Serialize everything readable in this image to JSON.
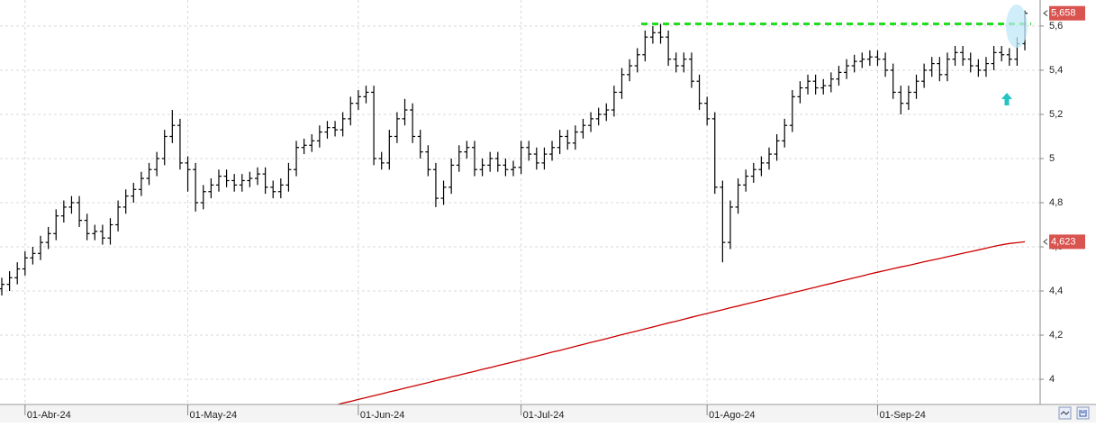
{
  "chart_data": {
    "type": "ohlc",
    "categories": [
      null,
      null,
      null,
      "01-Abr-24",
      null,
      null,
      null,
      null,
      null,
      null,
      null,
      null,
      null,
      null,
      null,
      null,
      null,
      null,
      null,
      null,
      null,
      null,
      null,
      null,
      "01-May-24",
      null,
      null,
      null,
      null,
      null,
      null,
      null,
      null,
      null,
      null,
      null,
      null,
      null,
      null,
      null,
      null,
      null,
      null,
      null,
      null,
      null,
      "01-Jun-24",
      null,
      null,
      null,
      null,
      null,
      null,
      null,
      null,
      null,
      null,
      null,
      null,
      null,
      null,
      null,
      null,
      null,
      null,
      null,
      null,
      "01-Jul-24",
      null,
      null,
      null,
      null,
      null,
      null,
      null,
      null,
      null,
      null,
      null,
      null,
      null,
      null,
      null,
      null,
      null,
      null,
      null,
      null,
      null,
      null,
      null,
      "01-Ago-24",
      null,
      null,
      null,
      null,
      null,
      null,
      null,
      null,
      null,
      null,
      null,
      null,
      null,
      null,
      null,
      null,
      null,
      null,
      null,
      null,
      null,
      "01-Sep-24",
      null,
      null,
      null,
      null,
      null,
      null,
      null,
      null,
      null,
      null,
      null,
      null,
      null,
      null,
      null,
      null,
      null,
      null,
      null
    ],
    "ylim": [
      3.886,
      5.718
    ],
    "yticks": [
      4,
      {
        "value": 4.2,
        "label": "4,2"
      },
      {
        "value": 4.4,
        "label": "4,4"
      },
      {
        "value": 4.6,
        "label": "4,6"
      },
      {
        "value": 4.8,
        "label": "4,8"
      },
      5,
      {
        "value": 5.2,
        "label": "5,2"
      },
      {
        "value": 5.4,
        "label": "5,4"
      },
      {
        "value": 5.6,
        "label": "5,6"
      }
    ],
    "grid": true,
    "series": [
      {
        "type": "ohlc",
        "color": "#000000",
        "open": [
          4.41,
          4.43,
          4.46,
          4.5,
          4.55,
          4.57,
          4.62,
          4.66,
          4.74,
          4.78,
          4.8,
          4.72,
          4.66,
          4.67,
          4.64,
          4.7,
          4.78,
          4.83,
          4.86,
          4.91,
          4.95,
          5.0,
          5.1,
          5.15,
          4.98,
          4.95,
          4.8,
          4.85,
          4.88,
          4.92,
          4.9,
          4.88,
          4.9,
          4.91,
          4.93,
          4.87,
          4.85,
          4.88,
          4.95,
          5.05,
          5.06,
          5.08,
          5.12,
          5.14,
          5.13,
          5.18,
          5.25,
          5.28,
          5.3,
          5.0,
          4.98,
          5.1,
          5.18,
          5.22,
          5.1,
          5.03,
          4.95,
          4.82,
          4.87,
          4.97,
          5.03,
          5.05,
          4.95,
          4.97,
          5.0,
          4.97,
          4.95,
          4.96,
          5.05,
          5.02,
          4.98,
          5.02,
          5.05,
          5.1,
          5.07,
          5.12,
          5.15,
          5.18,
          5.2,
          5.22,
          5.3,
          5.38,
          5.42,
          5.47,
          5.55,
          5.57,
          5.55,
          5.45,
          5.42,
          5.45,
          5.35,
          5.25,
          5.18,
          4.87,
          4.62,
          4.78,
          4.88,
          4.92,
          4.95,
          4.98,
          5.02,
          5.08,
          5.15,
          5.28,
          5.32,
          5.35,
          5.32,
          5.33,
          5.36,
          5.39,
          5.42,
          5.44,
          5.45,
          5.46,
          5.45,
          5.4,
          5.3,
          5.25,
          5.3,
          5.35,
          5.4,
          5.43,
          5.38,
          5.45,
          5.48,
          5.45,
          5.42,
          5.4,
          5.43,
          5.48,
          5.47,
          5.45,
          5.52
        ],
        "high": [
          4.46,
          4.49,
          4.53,
          4.58,
          4.6,
          4.65,
          4.69,
          4.77,
          4.81,
          4.83,
          4.83,
          4.75,
          4.7,
          4.7,
          4.73,
          4.81,
          4.86,
          4.89,
          4.94,
          4.98,
          5.03,
          5.13,
          5.22,
          5.18,
          5.01,
          4.98,
          4.88,
          4.91,
          4.95,
          4.95,
          4.93,
          4.93,
          4.94,
          4.96,
          4.96,
          4.9,
          4.91,
          4.98,
          5.08,
          5.09,
          5.11,
          5.15,
          5.17,
          5.17,
          5.21,
          5.28,
          5.31,
          5.33,
          5.33,
          5.03,
          5.13,
          5.21,
          5.27,
          5.25,
          5.13,
          5.06,
          4.98,
          4.9,
          5.0,
          5.06,
          5.08,
          5.08,
          5.0,
          5.03,
          5.03,
          5.0,
          4.99,
          5.08,
          5.08,
          5.05,
          5.05,
          5.08,
          5.13,
          5.13,
          5.15,
          5.18,
          5.21,
          5.23,
          5.25,
          5.33,
          5.41,
          5.45,
          5.5,
          5.58,
          5.6,
          5.61,
          5.58,
          5.48,
          5.48,
          5.48,
          5.38,
          5.28,
          5.21,
          4.9,
          4.81,
          4.91,
          4.95,
          4.98,
          5.01,
          5.05,
          5.11,
          5.18,
          5.31,
          5.35,
          5.38,
          5.38,
          5.36,
          5.39,
          5.42,
          5.45,
          5.47,
          5.48,
          5.49,
          5.49,
          5.48,
          5.43,
          5.33,
          5.33,
          5.38,
          5.43,
          5.46,
          5.46,
          5.48,
          5.51,
          5.51,
          5.48,
          5.45,
          5.46,
          5.51,
          5.51,
          5.5,
          5.55,
          5.67
        ],
        "low": [
          4.38,
          4.4,
          4.43,
          4.47,
          4.52,
          4.54,
          4.59,
          4.63,
          4.71,
          4.75,
          4.69,
          4.63,
          4.63,
          4.61,
          4.61,
          4.67,
          4.75,
          4.8,
          4.83,
          4.88,
          4.92,
          4.97,
          5.07,
          4.95,
          4.85,
          4.76,
          4.77,
          4.82,
          4.85,
          4.87,
          4.85,
          4.85,
          4.87,
          4.88,
          4.84,
          4.82,
          4.82,
          4.85,
          4.92,
          5.02,
          5.03,
          5.05,
          5.09,
          5.1,
          5.1,
          5.15,
          5.22,
          5.25,
          4.97,
          4.95,
          4.95,
          5.07,
          5.15,
          5.07,
          5.0,
          4.92,
          4.78,
          4.79,
          4.84,
          4.94,
          5.0,
          4.92,
          4.92,
          4.94,
          4.94,
          4.92,
          4.92,
          4.93,
          4.99,
          4.95,
          4.95,
          4.99,
          5.02,
          5.04,
          5.04,
          5.09,
          5.12,
          5.15,
          5.17,
          5.19,
          5.27,
          5.35,
          5.39,
          5.44,
          5.52,
          5.52,
          5.42,
          5.39,
          5.39,
          5.32,
          5.22,
          5.15,
          4.84,
          4.53,
          4.59,
          4.75,
          4.85,
          4.89,
          4.92,
          4.95,
          4.99,
          5.05,
          5.12,
          5.25,
          5.29,
          5.29,
          5.29,
          5.3,
          5.33,
          5.36,
          5.39,
          5.41,
          5.42,
          5.42,
          5.37,
          5.27,
          5.2,
          5.22,
          5.27,
          5.32,
          5.37,
          5.35,
          5.35,
          5.42,
          5.42,
          5.39,
          5.37,
          5.37,
          5.4,
          5.44,
          5.42,
          5.42,
          5.49
        ],
        "close": [
          4.43,
          4.46,
          4.5,
          4.55,
          4.57,
          4.62,
          4.66,
          4.74,
          4.78,
          4.8,
          4.72,
          4.66,
          4.67,
          4.64,
          4.7,
          4.78,
          4.83,
          4.86,
          4.91,
          4.95,
          5.0,
          5.1,
          5.15,
          4.98,
          4.95,
          4.8,
          4.85,
          4.88,
          4.92,
          4.9,
          4.88,
          4.9,
          4.91,
          4.93,
          4.87,
          4.85,
          4.88,
          4.95,
          5.05,
          5.06,
          5.08,
          5.12,
          5.14,
          5.13,
          5.18,
          5.25,
          5.28,
          5.3,
          5.0,
          4.98,
          5.1,
          5.18,
          5.22,
          5.1,
          5.03,
          4.95,
          4.82,
          4.87,
          4.97,
          5.03,
          5.05,
          4.95,
          4.97,
          5.0,
          4.97,
          4.95,
          4.96,
          5.05,
          5.02,
          4.98,
          5.02,
          5.05,
          5.1,
          5.07,
          5.12,
          5.15,
          5.18,
          5.2,
          5.22,
          5.3,
          5.38,
          5.42,
          5.47,
          5.55,
          5.57,
          5.55,
          5.45,
          5.42,
          5.45,
          5.35,
          5.25,
          5.18,
          4.87,
          4.62,
          4.78,
          4.88,
          4.92,
          4.95,
          4.98,
          5.02,
          5.08,
          5.15,
          5.28,
          5.32,
          5.35,
          5.32,
          5.33,
          5.36,
          5.39,
          5.42,
          5.44,
          5.45,
          5.46,
          5.45,
          5.4,
          5.3,
          5.25,
          5.3,
          5.35,
          5.4,
          5.43,
          5.38,
          5.45,
          5.48,
          5.45,
          5.42,
          5.4,
          5.43,
          5.48,
          5.47,
          5.45,
          5.52,
          5.658
        ],
        "value_labels": [
          null,
          null,
          null,
          null,
          null,
          null,
          null,
          null,
          null,
          null,
          null,
          null,
          null,
          null,
          null,
          null,
          null,
          null,
          null,
          null,
          null,
          null,
          null,
          null,
          null,
          null,
          null,
          null,
          null,
          null,
          null,
          null,
          null,
          null,
          null,
          null,
          null,
          null,
          null,
          null,
          null,
          null,
          null,
          null,
          null,
          null,
          null,
          null,
          null,
          null,
          null,
          null,
          null,
          null,
          null,
          null,
          null,
          null,
          null,
          null,
          null,
          null,
          null,
          null,
          null,
          null,
          null,
          null,
          null,
          null,
          null,
          null,
          null,
          null,
          null,
          null,
          null,
          null,
          null,
          null,
          null,
          null,
          null,
          null,
          null,
          null,
          null,
          null,
          null,
          null,
          null,
          null,
          null,
          null,
          null,
          null,
          null,
          null,
          null,
          null,
          null,
          null,
          null,
          null,
          null,
          null,
          null,
          null,
          null,
          null,
          null,
          null,
          null,
          null,
          null,
          null,
          null,
          null,
          null,
          null,
          null,
          null,
          null,
          null,
          null,
          null,
          null,
          null,
          null,
          null,
          null,
          null,
          "5,658"
        ]
      },
      {
        "type": "line",
        "color": "#cc0000",
        "values": [
          null,
          null,
          null,
          null,
          null,
          null,
          null,
          null,
          null,
          null,
          null,
          null,
          null,
          null,
          null,
          null,
          null,
          null,
          null,
          null,
          null,
          null,
          null,
          null,
          null,
          null,
          null,
          null,
          null,
          null,
          null,
          null,
          null,
          null,
          null,
          null,
          null,
          null,
          null,
          null,
          null,
          null,
          3.875,
          3.883,
          3.892,
          3.9,
          3.909,
          3.917,
          3.926,
          3.934,
          3.943,
          3.951,
          3.96,
          3.968,
          3.977,
          3.985,
          3.994,
          4.002,
          4.011,
          4.019,
          4.028,
          4.036,
          4.045,
          4.053,
          4.062,
          4.07,
          4.079,
          4.087,
          4.096,
          4.105,
          4.114,
          4.123,
          4.131,
          4.14,
          4.149,
          4.158,
          4.167,
          4.175,
          4.184,
          4.193,
          4.202,
          4.211,
          4.219,
          4.228,
          4.237,
          4.246,
          4.255,
          4.263,
          4.272,
          4.281,
          4.29,
          4.298,
          4.307,
          4.315,
          4.324,
          4.332,
          4.341,
          4.349,
          4.358,
          4.366,
          4.375,
          4.383,
          4.392,
          4.4,
          4.409,
          4.417,
          4.426,
          4.434,
          4.443,
          4.451,
          4.46,
          4.468,
          4.477,
          4.485,
          4.493,
          4.501,
          4.509,
          4.516,
          4.524,
          4.532,
          4.54,
          4.547,
          4.555,
          4.563,
          4.571,
          4.578,
          4.586,
          4.594,
          4.602,
          4.609,
          4.615,
          4.619,
          4.623
        ],
        "value_labels": [
          null,
          null,
          null,
          null,
          null,
          null,
          null,
          null,
          null,
          null,
          null,
          null,
          null,
          null,
          null,
          null,
          null,
          null,
          null,
          null,
          null,
          null,
          null,
          null,
          null,
          null,
          null,
          null,
          null,
          null,
          null,
          null,
          null,
          null,
          null,
          null,
          null,
          null,
          null,
          null,
          null,
          null,
          null,
          null,
          null,
          null,
          null,
          null,
          null,
          null,
          null,
          null,
          null,
          null,
          null,
          null,
          null,
          null,
          null,
          null,
          null,
          null,
          null,
          null,
          null,
          null,
          null,
          null,
          null,
          null,
          null,
          null,
          null,
          null,
          null,
          null,
          null,
          null,
          null,
          null,
          null,
          null,
          null,
          null,
          null,
          null,
          null,
          null,
          null,
          null,
          null,
          null,
          null,
          null,
          null,
          null,
          null,
          null,
          null,
          null,
          null,
          null,
          null,
          null,
          null,
          null,
          null,
          null,
          null,
          null,
          null,
          null,
          null,
          null,
          null,
          null,
          null,
          null,
          null,
          null,
          null,
          null,
          null,
          null,
          null,
          null,
          null,
          null,
          null,
          null,
          null,
          null,
          "4,623"
        ]
      }
    ],
    "reference_lines": [
      {
        "value": 5.61,
        "color": "#22dd22"
      }
    ]
  }
}
